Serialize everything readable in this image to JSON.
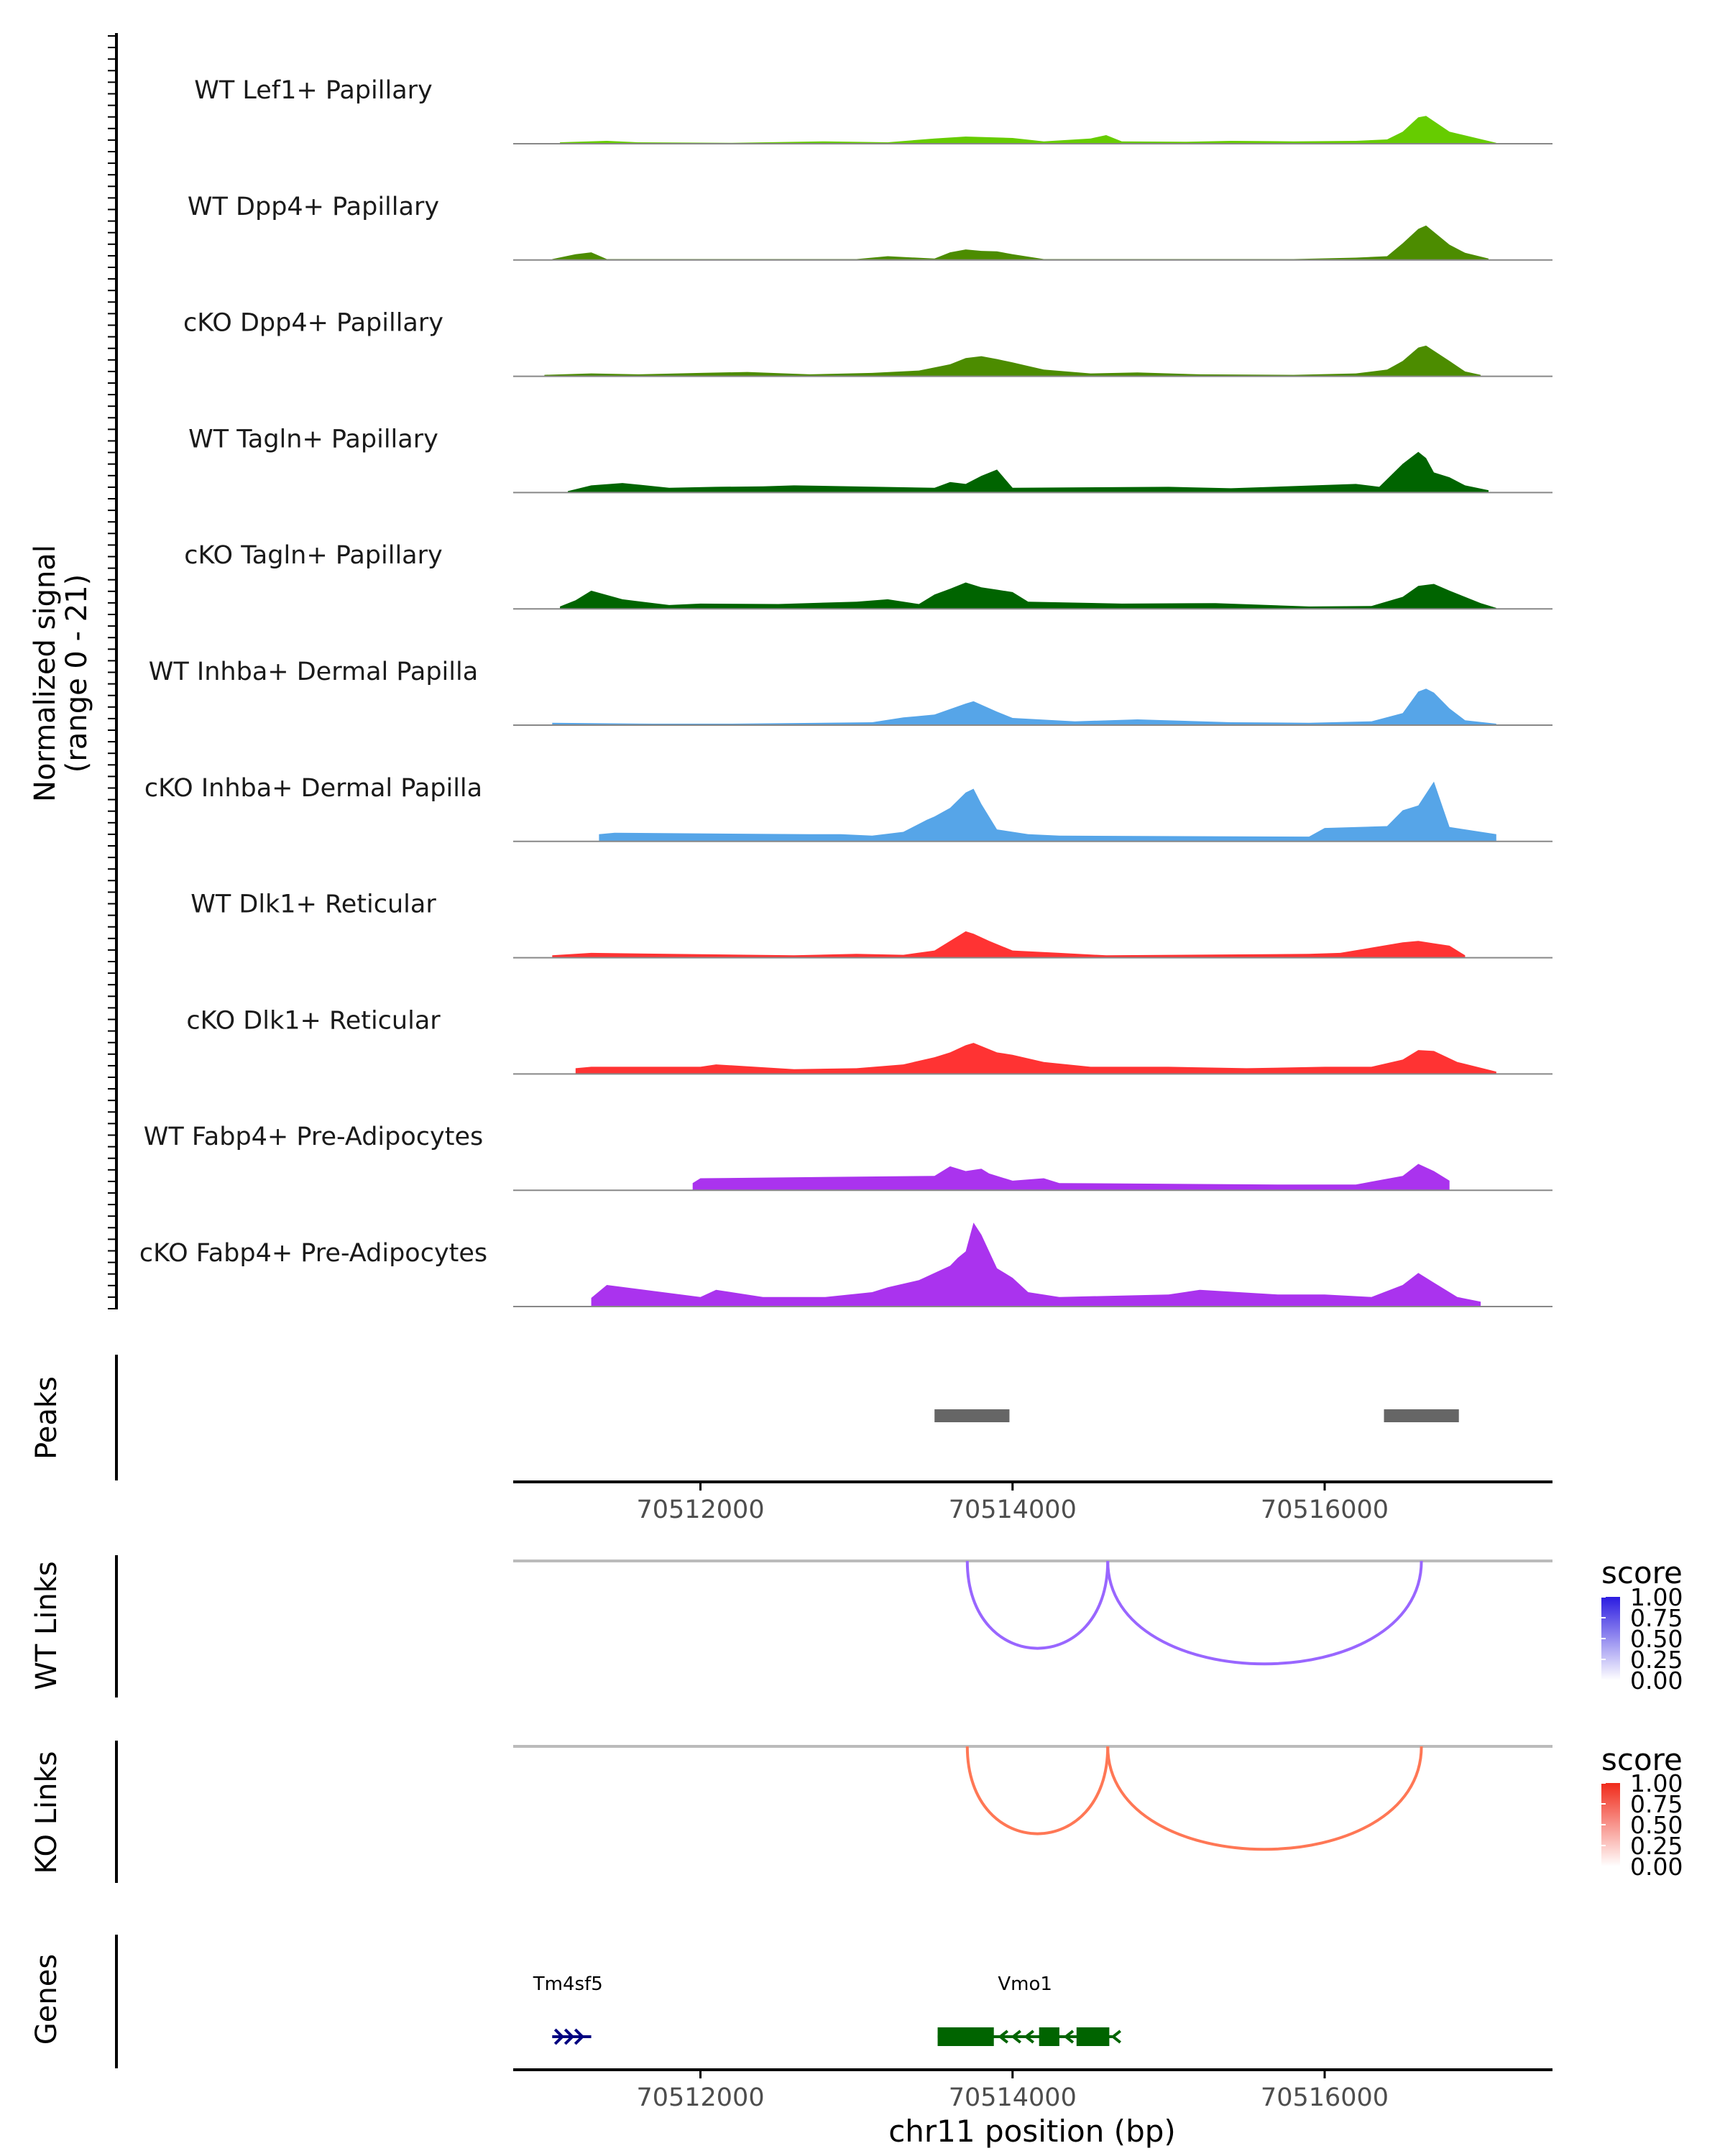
{
  "chart_data": {
    "type": "area",
    "title": "",
    "xlabel": "chr11 position (bp)",
    "xlim": [
      70510800,
      70517460
    ],
    "x_ticks": [
      {
        "value": 70512000,
        "label": "70512000"
      },
      {
        "value": 70514000,
        "label": "70514000"
      },
      {
        "value": 70516000,
        "label": "70516000"
      }
    ],
    "coverage": {
      "ylabel_line1": "Normalized signal",
      "ylabel_line2": "(range 0 - 21)",
      "ylim": [
        0,
        21
      ],
      "series": [
        {
          "name": "WT Lef1+ Papillary",
          "color": "#66CC00",
          "x": [
            70511100,
            70511400,
            70511600,
            70512200,
            70512800,
            70513200,
            70513500,
            70513700,
            70514000,
            70514200,
            70514500,
            70514600,
            70514700,
            70515100,
            70515400,
            70515800,
            70516200,
            70516400,
            70516500,
            70516600,
            70516650,
            70516800,
            70517100
          ],
          "y": [
            0.3,
            0.6,
            0.3,
            0.2,
            0.5,
            0.3,
            1.1,
            1.5,
            1.2,
            0.5,
            1.1,
            1.8,
            0.5,
            0.4,
            0.6,
            0.5,
            0.6,
            0.9,
            2.5,
            5.5,
            5.8,
            2.5,
            0.2
          ]
        },
        {
          "name": "WT Dpp4+ Papillary",
          "color": "#4C8C00",
          "x": [
            70511050,
            70511200,
            70511300,
            70511400,
            70513000,
            70513200,
            70513500,
            70513600,
            70513700,
            70513800,
            70513900,
            70514000,
            70514200,
            70515800,
            70516200,
            70516400,
            70516500,
            70516600,
            70516650,
            70516800,
            70516900,
            70517050
          ],
          "y": [
            0.2,
            1.2,
            1.6,
            0.2,
            0.2,
            0.8,
            0.3,
            1.6,
            2.2,
            1.9,
            1.8,
            1.2,
            0.2,
            0.2,
            0.5,
            0.8,
            3.5,
            6.5,
            7.2,
            3.2,
            1.5,
            0.3
          ]
        },
        {
          "name": "cKO Dpp4+ Papillary",
          "color": "#4C8C00",
          "x": [
            70511000,
            70511300,
            70511600,
            70512000,
            70512300,
            70512700,
            70513100,
            70513400,
            70513600,
            70513700,
            70513800,
            70513900,
            70514000,
            70514200,
            70514500,
            70514800,
            70515200,
            70515800,
            70516200,
            70516400,
            70516500,
            70516600,
            70516650,
            70516800,
            70516900,
            70517000
          ],
          "y": [
            0.3,
            0.6,
            0.4,
            0.7,
            0.9,
            0.4,
            0.7,
            1.2,
            2.5,
            3.8,
            4.2,
            3.6,
            2.9,
            1.4,
            0.6,
            0.8,
            0.4,
            0.3,
            0.6,
            1.4,
            3.2,
            6.0,
            6.4,
            3.2,
            1.0,
            0.3
          ]
        },
        {
          "name": "WT Tagln+ Papillary",
          "color": "#006400",
          "x": [
            70511150,
            70511300,
            70511500,
            70511800,
            70512100,
            70512400,
            70512600,
            70513500,
            70513600,
            70513700,
            70513800,
            70513900,
            70514000,
            70515000,
            70515400,
            70516200,
            70516350,
            70516500,
            70516600,
            70516650,
            70516700,
            70516800,
            70516900,
            70517050
          ],
          "y": [
            0.3,
            1.5,
            2.0,
            1.0,
            1.2,
            1.3,
            1.5,
            1.0,
            2.2,
            1.8,
            3.5,
            4.8,
            1.0,
            1.2,
            0.9,
            1.8,
            1.2,
            6.0,
            8.5,
            7.2,
            4.2,
            3.2,
            1.5,
            0.5
          ]
        },
        {
          "name": "cKO Tagln+ Papillary",
          "color": "#006400",
          "x": [
            70511100,
            70511200,
            70511300,
            70511500,
            70511800,
            70512000,
            70512500,
            70513000,
            70513200,
            70513400,
            70513500,
            70513600,
            70513700,
            70513800,
            70513900,
            70514000,
            70514100,
            70514700,
            70515300,
            70515900,
            70516300,
            70516500,
            70516600,
            70516700,
            70516800,
            70517000,
            70517100
          ],
          "y": [
            0.5,
            1.8,
            3.8,
            2.0,
            0.8,
            1.1,
            1.0,
            1.5,
            2.0,
            1.0,
            3.0,
            4.2,
            5.5,
            4.5,
            4.0,
            3.5,
            1.5,
            1.1,
            1.2,
            0.5,
            0.6,
            2.5,
            4.8,
            5.2,
            3.8,
            1.2,
            0.2
          ]
        },
        {
          "name": "WT Inhba+ Dermal Papilla",
          "color": "#56A5E8",
          "x": [
            70511050,
            70511300,
            70511700,
            70512200,
            70513100,
            70513300,
            70513500,
            70513700,
            70513750,
            70513900,
            70514000,
            70514400,
            70514800,
            70515400,
            70515900,
            70516300,
            70516500,
            70516600,
            70516650,
            70516700,
            70516800,
            70516900,
            70517100
          ],
          "y": [
            0.5,
            0.4,
            0.3,
            0.3,
            0.6,
            1.6,
            2.2,
            4.5,
            5.0,
            2.8,
            1.5,
            0.8,
            1.2,
            0.6,
            0.5,
            0.8,
            2.5,
            7.0,
            7.6,
            6.8,
            3.5,
            1.0,
            0.3
          ]
        },
        {
          "name": "cKO Inhba+ Dermal Papilla",
          "color": "#56A5E8",
          "x": [
            70511350,
            70511450,
            70512700,
            70512900,
            70513100,
            70513300,
            70513450,
            70513500,
            70513600,
            70513700,
            70513750,
            70513800,
            70513900,
            70514100,
            70514300,
            70515900,
            70516000,
            70516400,
            70516500,
            70516600,
            70516700,
            70516800,
            70517100
          ],
          "y": [
            1.5,
            1.8,
            1.5,
            1.5,
            1.2,
            2.0,
            4.5,
            5.2,
            7.0,
            10.2,
            11.0,
            7.8,
            2.5,
            1.5,
            1.2,
            1.0,
            2.8,
            3.2,
            6.5,
            7.5,
            12.5,
            3.0,
            1.5
          ]
        },
        {
          "name": "WT Dlk1+ Reticular",
          "color": "#FF3333",
          "x": [
            70511050,
            70511300,
            70512600,
            70513000,
            70513300,
            70513500,
            70513600,
            70513700,
            70513750,
            70513850,
            70514000,
            70514300,
            70514600,
            70515900,
            70516100,
            70516500,
            70516600,
            70516700,
            70516800,
            70516900
          ],
          "y": [
            0.5,
            1.0,
            0.5,
            0.8,
            0.6,
            1.5,
            3.5,
            5.5,
            5.0,
            3.5,
            1.5,
            1.0,
            0.5,
            0.8,
            1.0,
            3.2,
            3.5,
            3.0,
            2.5,
            0.5
          ]
        },
        {
          "name": "cKO Dlk1+ Reticular",
          "color": "#FF3333",
          "x": [
            70511200,
            70511300,
            70512000,
            70512100,
            70512600,
            70513000,
            70513300,
            70513500,
            70513600,
            70513700,
            70513750,
            70513900,
            70514000,
            70514200,
            70514500,
            70515000,
            70515500,
            70516000,
            70516300,
            70516500,
            70516600,
            70516700,
            70516850,
            70517100
          ],
          "y": [
            1.2,
            1.5,
            1.5,
            2.0,
            1.0,
            1.2,
            2.0,
            3.5,
            4.5,
            6.0,
            6.5,
            4.5,
            4.0,
            2.5,
            1.5,
            1.5,
            1.2,
            1.5,
            1.5,
            3.0,
            5.0,
            4.8,
            2.5,
            0.5
          ]
        },
        {
          "name": "WT Fabp4+ Pre-Adipocytes",
          "color": "#AA33EE",
          "x": [
            70511950,
            70512000,
            70513500,
            70513600,
            70513700,
            70513800,
            70513850,
            70514000,
            70514200,
            70514300,
            70515700,
            70516200,
            70516500,
            70516600,
            70516700,
            70516800
          ],
          "y": [
            1.5,
            2.5,
            3.0,
            5.0,
            4.0,
            4.5,
            3.5,
            2.0,
            2.5,
            1.5,
            1.2,
            1.2,
            3.0,
            5.5,
            4.0,
            2.0
          ]
        },
        {
          "name": "cKO Fabp4+ Pre-Adipocytes",
          "color": "#AA33EE",
          "x": [
            70511300,
            70511400,
            70512000,
            70512100,
            70512400,
            70512800,
            70513100,
            70513200,
            70513400,
            70513500,
            70513600,
            70513650,
            70513700,
            70513750,
            70513800,
            70513900,
            70514000,
            70514100,
            70514300,
            70515000,
            70515200,
            70515700,
            70516000,
            70516300,
            70516500,
            70516600,
            70516700,
            70516850,
            70517000
          ],
          "y": [
            1.8,
            4.5,
            2.0,
            3.5,
            2.0,
            2.0,
            3.0,
            4.0,
            5.5,
            7.0,
            8.5,
            10.2,
            11.5,
            17.5,
            15.0,
            8.0,
            6.0,
            3.0,
            2.0,
            2.5,
            3.5,
            2.5,
            2.5,
            2.0,
            4.5,
            7.0,
            5.0,
            2.0,
            1.0
          ]
        }
      ]
    },
    "peaks": {
      "label": "Peaks",
      "regions": [
        [
          70513500,
          70513980
        ],
        [
          70516380,
          70516860
        ]
      ]
    },
    "links": [
      {
        "label": "WT Links",
        "legend_title": "score",
        "color": "#9966FF",
        "legend_color": "#2B1BE0",
        "arcs": [
          [
            70513710,
            70514610
          ],
          [
            70514610,
            70516620
          ]
        ],
        "legend_ticks": [
          "1.00",
          "0.75",
          "0.50",
          "0.25",
          "0.00"
        ]
      },
      {
        "label": "KO Links",
        "legend_title": "score",
        "color": "#FF7755",
        "legend_color": "#F02A1A",
        "arcs": [
          [
            70513710,
            70514610
          ],
          [
            70514610,
            70516620
          ]
        ],
        "legend_ticks": [
          "1.00",
          "0.75",
          "0.50",
          "0.25",
          "0.00"
        ]
      }
    ],
    "genes": {
      "label": "Genes",
      "items": [
        {
          "name": "Tm4sf5",
          "color": "#000080",
          "strand": "+",
          "start": 70511050,
          "end": 70511300,
          "exons": []
        },
        {
          "name": "Vmo1",
          "color": "#006400",
          "strand": "-",
          "start": 70513520,
          "end": 70514640,
          "exons": [
            [
              70513520,
              70513880
            ],
            [
              70514170,
              70514300
            ],
            [
              70514410,
              70514620
            ]
          ]
        }
      ]
    }
  },
  "colors": {
    "axis": "#000000",
    "baseline": "#888888",
    "peak": "#666666",
    "link_baseline": "#BBBBBB",
    "tick_label": "#4D4D4D"
  }
}
